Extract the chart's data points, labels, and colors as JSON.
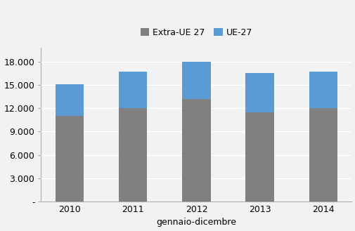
{
  "years": [
    "2010",
    "2011",
    "2012",
    "2013",
    "2014"
  ],
  "extra_ue": [
    11000,
    12000,
    13200,
    11500,
    12000
  ],
  "ue27": [
    4100,
    4700,
    4800,
    5000,
    4700
  ],
  "color_extra_ue": "#808080",
  "color_ue27": "#5b9bd5",
  "xlabel": "gennaio-dicembre",
  "legend_labels": [
    "Extra-UE 27",
    "UE-27"
  ],
  "yticks": [
    0,
    3000,
    6000,
    9000,
    12000,
    15000,
    18000
  ],
  "ytick_labels": [
    "-",
    "3.000",
    "6.000",
    "9.000",
    "12.000",
    "15.000",
    "18.000"
  ],
  "ylim": [
    0,
    19800
  ],
  "bar_width": 0.45,
  "figsize": [
    5.06,
    3.29
  ],
  "dpi": 100,
  "bg_color": "#f2f2f2",
  "grid_color": "#ffffff",
  "spine_color": "#aaaaaa"
}
